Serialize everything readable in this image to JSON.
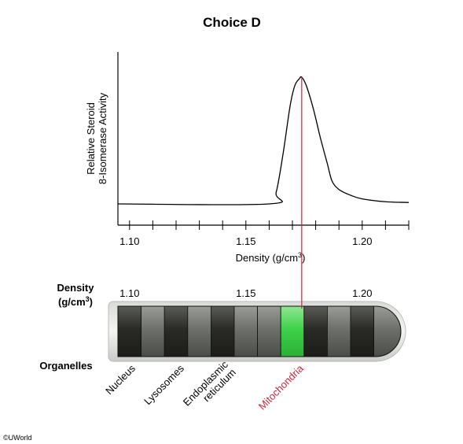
{
  "title": "Choice D",
  "credit": "©UWorld",
  "colors": {
    "axis": "#000000",
    "curve": "#000000",
    "marker_line": "#d0243c",
    "mitochondria_label": "#d0243c",
    "band_highlight": "#3fd14a",
    "tube_dark": "#2a2a26",
    "tube_mid": "#6e706c"
  },
  "chart_data": {
    "type": "line",
    "title": "Choice D",
    "xlabel": "Density (g/cm³)",
    "xlabel_base": "Density (g/cm",
    "xlabel_sup": "3",
    "xlabel_close": ")",
    "ylabel_line1": "Relative Steroid",
    "ylabel_line2": "8-Isomerase Activity",
    "xlim": [
      1.095,
      1.22
    ],
    "ylim": [
      0,
      1
    ],
    "x_ticks": [
      "1.10",
      "1.15",
      "1.20"
    ],
    "x_tick_values": [
      1.1,
      1.15,
      1.2
    ],
    "minor_tick_step": 0.01,
    "grid": false,
    "peak_marker_x": 1.174,
    "series": [
      {
        "x": [
          1.095,
          1.16,
          1.163,
          1.166,
          1.169,
          1.171,
          1.173,
          1.174,
          1.176,
          1.179,
          1.182,
          1.185,
          1.187,
          1.19,
          1.195,
          1.2,
          1.21,
          1.22
        ],
        "y": [
          0.0,
          0.0,
          0.08,
          0.35,
          0.68,
          0.82,
          0.87,
          0.88,
          0.82,
          0.66,
          0.46,
          0.28,
          0.16,
          0.1,
          0.06,
          0.035,
          0.015,
          0.01
        ]
      }
    ]
  },
  "tube": {
    "density_label_line1": "Density",
    "density_label_line2_base": "(g/cm",
    "density_label_sup": "3",
    "density_label_close": ")",
    "scale_ticks": [
      "1.10",
      "1.15",
      "1.20"
    ],
    "organelles_label": "Organelles",
    "highlight_band_index": 7,
    "bands": [
      "dark",
      "mid",
      "dark",
      "mid",
      "dark",
      "mid",
      "mid",
      "highlight",
      "dark",
      "mid",
      "dark",
      "mid"
    ],
    "organelles": [
      {
        "lines": [
          "Nucleus"
        ],
        "highlight": false
      },
      {
        "lines": [
          "Lysosomes"
        ],
        "highlight": false
      },
      {
        "lines": [
          "Endoplasmic",
          "reticulum"
        ],
        "highlight": false
      },
      {
        "lines": [
          "Mitochondria"
        ],
        "highlight": true
      }
    ]
  }
}
